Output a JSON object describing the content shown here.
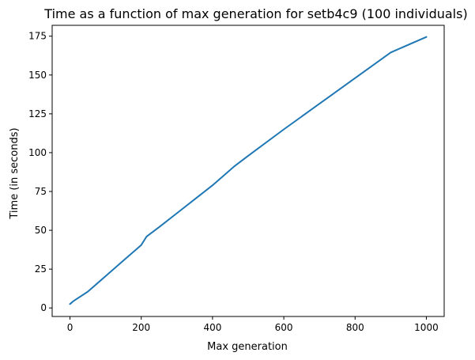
{
  "chart_data": {
    "type": "line",
    "title": "Time as a function of max generation for setb4c9 (100 individuals)",
    "xlabel": "Max generation",
    "ylabel": "Time (in seconds)",
    "xlim": [
      -50,
      1050
    ],
    "ylim": [
      -5.5,
      182
    ],
    "xticks": [
      0,
      200,
      400,
      600,
      800,
      1000
    ],
    "yticks": [
      0,
      25,
      50,
      75,
      100,
      125,
      150,
      175
    ],
    "grid": false,
    "series": [
      {
        "color": "#1f77b4",
        "x": [
          0,
          10,
          20,
          50,
          100,
          150,
          200,
          215,
          250,
          300,
          350,
          400,
          460,
          500,
          600,
          700,
          800,
          900,
          1000
        ],
        "y": [
          2.5,
          4.5,
          6,
          10.5,
          20.5,
          30.5,
          40.5,
          46,
          52,
          61,
          70,
          79,
          91,
          98,
          115,
          131.5,
          148,
          164.5,
          174.5
        ]
      }
    ]
  }
}
